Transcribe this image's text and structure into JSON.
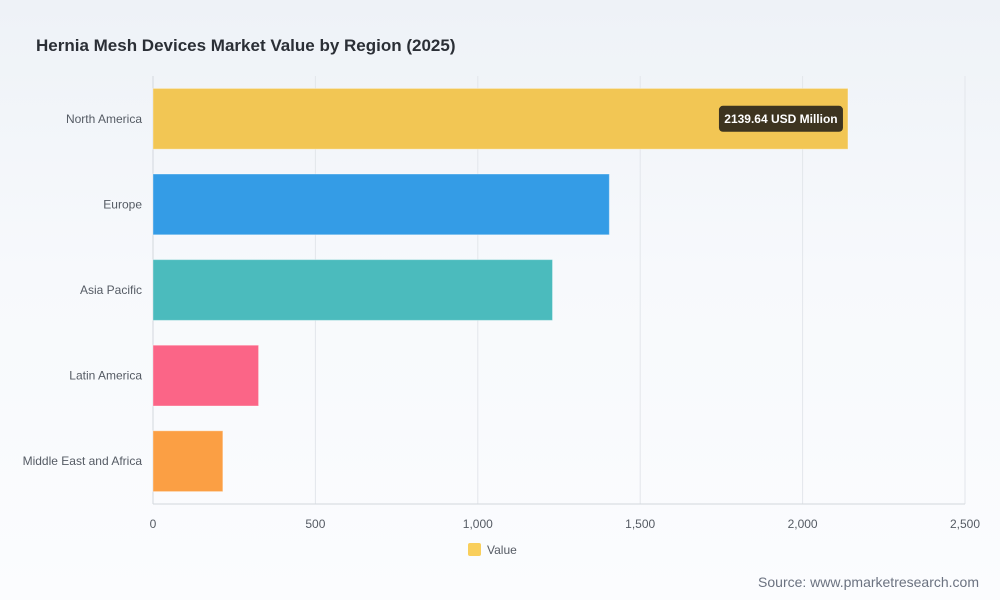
{
  "chart_data": {
    "type": "bar",
    "orientation": "horizontal",
    "title": "Hernia Mesh Devices Market Value by Region (2025)",
    "categories": [
      "North America",
      "Europe",
      "Asia Pacific",
      "Latin America",
      "Middle East and Africa"
    ],
    "series": [
      {
        "name": "Value",
        "values": [
          2139.64,
          1405,
          1230,
          325,
          215
        ]
      }
    ],
    "xlim": [
      0,
      2500
    ],
    "xticks": [
      0,
      500,
      1000,
      1500,
      2000,
      2500
    ],
    "xtick_labels": [
      "0",
      "500",
      "1,000",
      "1,500",
      "2,000",
      "2,500"
    ],
    "colors": [
      "#f2c654",
      "#349ce6",
      "#4bbbbd",
      "#fb6587",
      "#fb9f44"
    ],
    "legend_color": "#f9cf5c",
    "tooltip": {
      "category": "North America",
      "text": "2139.64 USD Million"
    },
    "grid": true,
    "legend_position": "bottom-center"
  },
  "source_text": "Source: www.pmarketresearch.com"
}
